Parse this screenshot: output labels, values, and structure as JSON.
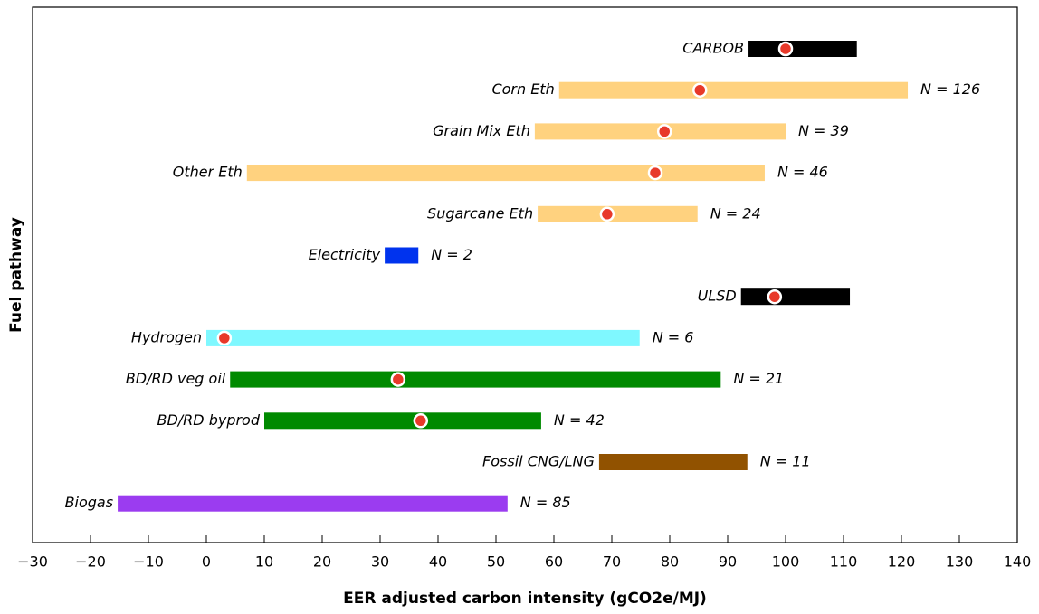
{
  "chart_data": {
    "type": "range_bar",
    "x_label": "EER adjusted carbon intensity (gCO2e/MJ)",
    "y_label": "Fuel pathway",
    "categories": [
      "CARBOB",
      "Corn Eth",
      "Grain Mix Eth",
      "Other Eth",
      "Sugarcane Eth",
      "Electricity",
      "ULSD",
      "Hydrogen",
      "BD/RD veg oil",
      "BD/RD byprod",
      "Fossil CNG/LNG",
      "Biogas"
    ],
    "low": [
      93.6,
      60.9,
      56.7,
      7.0,
      57.2,
      30.8,
      92.3,
      0,
      4.1,
      10,
      67.8,
      -15.3
    ],
    "high": [
      112.3,
      121.1,
      100,
      96.4,
      84.8,
      36.6,
      111.1,
      74.8,
      88.8,
      57.8,
      93.4,
      52.0
    ],
    "marker": [
      100,
      85.2,
      79.1,
      77.5,
      69.2,
      null,
      98.1,
      3.1,
      33.1,
      37.0,
      null,
      null
    ],
    "n_labels": [
      null,
      "N = 126",
      "N = 39",
      "N = 46",
      "N = 24",
      "N = 2",
      null,
      "N = 6",
      "N = 21",
      "N = 42",
      "N = 11",
      "N = 85"
    ],
    "colors": [
      "#000000",
      "#ffd27f",
      "#ffd27f",
      "#ffd27f",
      "#ffd27f",
      "#0033ee",
      "#000000",
      "#7ff8ff",
      "#008a00",
      "#008a00",
      "#915200",
      "#9b3cf0"
    ],
    "marker_color": "#e8392a",
    "xlim": [
      -30,
      140
    ],
    "xticks": [
      {
        "value": -30,
        "label": "−30"
      },
      {
        "value": -20,
        "label": "−20"
      },
      {
        "value": -10,
        "label": "−10"
      },
      0,
      10,
      20,
      30,
      40,
      50,
      60,
      70,
      80,
      90,
      100,
      110,
      120,
      130,
      140
    ]
  }
}
